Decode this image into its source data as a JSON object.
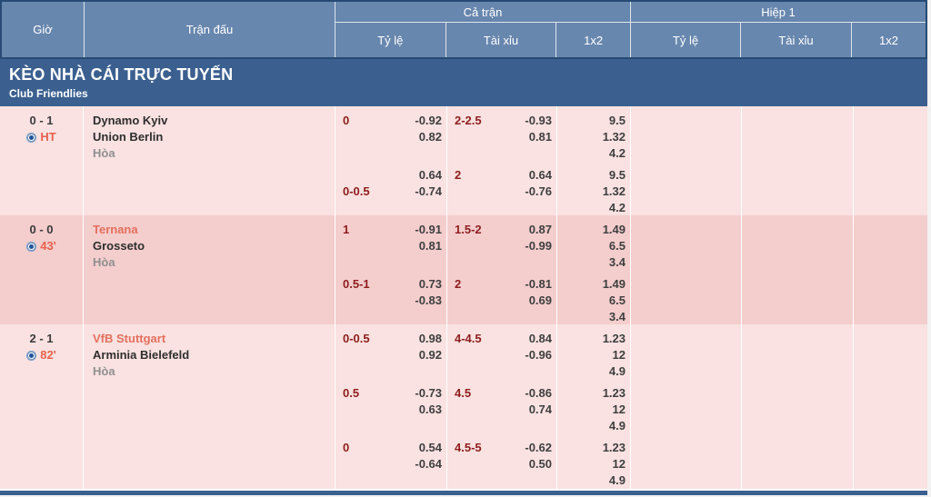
{
  "table_header": {
    "time": "Giờ",
    "match": "Trận đấu",
    "full_time": "Cả trận",
    "first_half": "Hiệp 1",
    "handicap": "Tỷ lệ",
    "over_under": "Tài xỉu",
    "one_x_two": "1x2"
  },
  "banner": {
    "title": "KÈO NHÀ CÁI TRỰC TUYẾN",
    "league": "Club Friendlies"
  },
  "matches": [
    {
      "score": "0 - 1",
      "clock": "HT",
      "highlight_home": false,
      "teams": {
        "home": "Dynamo Kyiv",
        "away": "Union Berlin",
        "draw": "Hòa"
      },
      "rows": [
        {
          "hc": {
            "tl": "0",
            "tv": "-0.92",
            "bl": "",
            "bv": "0.82"
          },
          "ou": {
            "tl": "2-2.5",
            "tv": "-0.93",
            "bl": "",
            "bv": "0.81"
          },
          "x12": {
            "h": "9.5",
            "a": "1.32",
            "d": "4.2"
          }
        },
        {
          "hc": {
            "tl": "",
            "tv": "0.64",
            "bl": "0-0.5",
            "bv": "-0.74"
          },
          "ou": {
            "tl": "2",
            "tv": "0.64",
            "bl": "",
            "bv": "-0.76"
          },
          "x12": {
            "h": "9.5",
            "a": "1.32",
            "d": "4.2"
          }
        }
      ]
    },
    {
      "score": "0 - 0",
      "clock": "43'",
      "highlight_home": true,
      "teams": {
        "home": "Ternana",
        "away": "Grosseto",
        "draw": "Hòa"
      },
      "rows": [
        {
          "hc": {
            "tl": "1",
            "tv": "-0.91",
            "bl": "",
            "bv": "0.81"
          },
          "ou": {
            "tl": "1.5-2",
            "tv": "0.87",
            "bl": "",
            "bv": "-0.99"
          },
          "x12": {
            "h": "1.49",
            "a": "6.5",
            "d": "3.4"
          }
        },
        {
          "hc": {
            "tl": "0.5-1",
            "tv": "0.73",
            "bl": "",
            "bv": "-0.83"
          },
          "ou": {
            "tl": "2",
            "tv": "-0.81",
            "bl": "",
            "bv": "0.69"
          },
          "x12": {
            "h": "1.49",
            "a": "6.5",
            "d": "3.4"
          }
        }
      ]
    },
    {
      "score": "2 - 1",
      "clock": "82'",
      "highlight_home": true,
      "teams": {
        "home": "VfB Stuttgart",
        "away": "Arminia Bielefeld",
        "draw": "Hòa"
      },
      "rows": [
        {
          "hc": {
            "tl": "0-0.5",
            "tv": "0.98",
            "bl": "",
            "bv": "0.92"
          },
          "ou": {
            "tl": "4-4.5",
            "tv": "0.84",
            "bl": "",
            "bv": "-0.96"
          },
          "x12": {
            "h": "1.23",
            "a": "12",
            "d": "4.9"
          }
        },
        {
          "hc": {
            "tl": "0.5",
            "tv": "-0.73",
            "bl": "",
            "bv": "0.63"
          },
          "ou": {
            "tl": "4.5",
            "tv": "-0.86",
            "bl": "",
            "bv": "0.74"
          },
          "x12": {
            "h": "1.23",
            "a": "12",
            "d": "4.9"
          }
        },
        {
          "hc": {
            "tl": "0",
            "tv": "0.54",
            "bl": "",
            "bv": "-0.64"
          },
          "ou": {
            "tl": "4.5-5",
            "tv": "-0.62",
            "bl": "",
            "bv": "0.50"
          },
          "x12": {
            "h": "1.23",
            "a": "12",
            "d": "4.9"
          }
        }
      ]
    }
  ],
  "colors": {
    "header_blue": "#6887ae",
    "banner_blue": "#3b6090",
    "row_pink_light": "#f9e2e1",
    "row_pink_dark": "#f4cdcd",
    "handicap_red": "#8e1d1d",
    "odds_gray": "#3f3f3f",
    "live_orange": "#e8614d"
  },
  "icons": {
    "live_indicator": "radio-dot"
  }
}
